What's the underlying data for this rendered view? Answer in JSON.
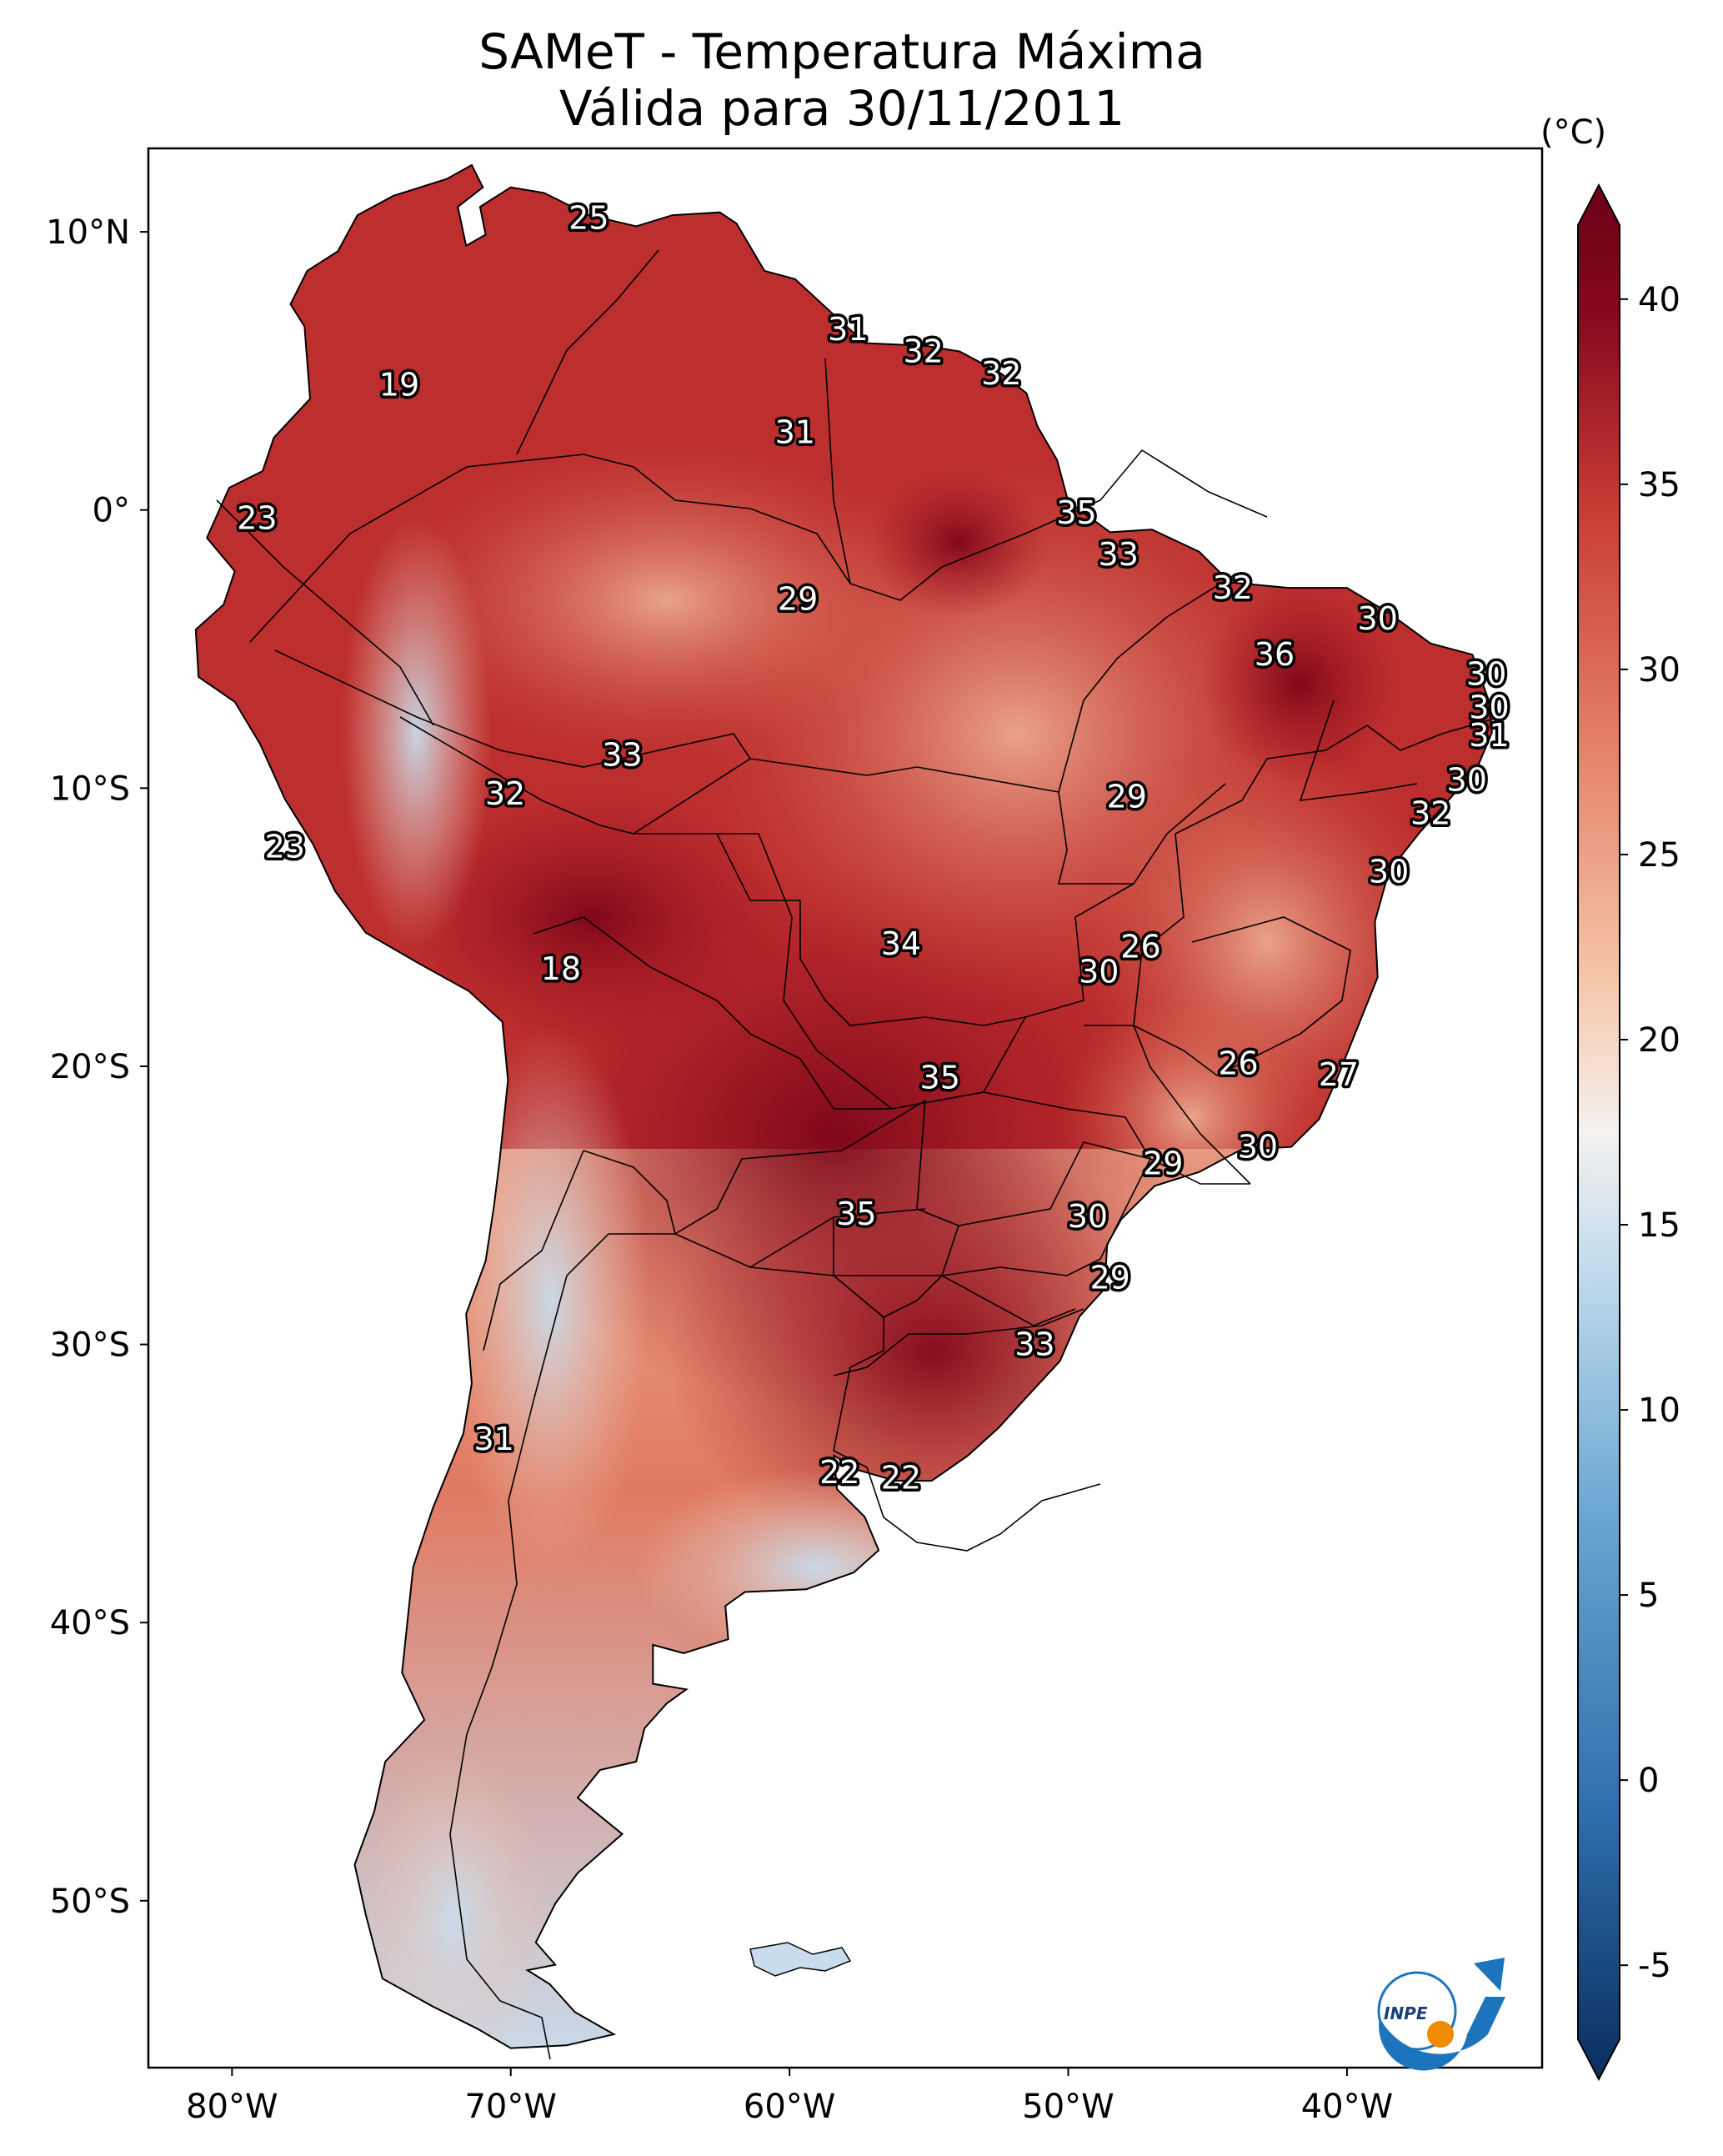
{
  "title": {
    "line1": "SAMeT - Temperatura Máxima",
    "line2": "Válida para 30/11/2011"
  },
  "map": {
    "region": "South America",
    "lon_range": [
      -83,
      -33
    ],
    "lat_range": [
      -56,
      13
    ],
    "lat_ticks": [
      {
        "value": 10,
        "label": "10°N"
      },
      {
        "value": 0,
        "label": "0°"
      },
      {
        "value": -10,
        "label": "10°S"
      },
      {
        "value": -20,
        "label": "20°S"
      },
      {
        "value": -30,
        "label": "30°S"
      },
      {
        "value": -40,
        "label": "40°S"
      },
      {
        "value": -50,
        "label": "50°S"
      }
    ],
    "lon_ticks": [
      {
        "value": -80,
        "label": "80°W"
      },
      {
        "value": -70,
        "label": "70°W"
      },
      {
        "value": -60,
        "label": "60°W"
      },
      {
        "value": -50,
        "label": "50°W"
      },
      {
        "value": -40,
        "label": "40°W"
      }
    ]
  },
  "temperature_labels": [
    {
      "lon": -67.2,
      "lat": 10.5,
      "value": "25"
    },
    {
      "lon": -57.9,
      "lat": 6.5,
      "value": "31"
    },
    {
      "lon": -55.2,
      "lat": 5.7,
      "value": "32"
    },
    {
      "lon": -52.4,
      "lat": 4.9,
      "value": "32"
    },
    {
      "lon": -74.0,
      "lat": 4.5,
      "value": "19"
    },
    {
      "lon": -59.8,
      "lat": 2.8,
      "value": "31"
    },
    {
      "lon": -79.1,
      "lat": -0.3,
      "value": "23"
    },
    {
      "lon": -49.7,
      "lat": -0.1,
      "value": "35"
    },
    {
      "lon": -48.2,
      "lat": -1.6,
      "value": "33"
    },
    {
      "lon": -59.7,
      "lat": -3.2,
      "value": "29"
    },
    {
      "lon": -44.1,
      "lat": -2.8,
      "value": "32"
    },
    {
      "lon": -38.9,
      "lat": -3.9,
      "value": "30"
    },
    {
      "lon": -42.6,
      "lat": -5.2,
      "value": "36"
    },
    {
      "lon": -35.0,
      "lat": -5.9,
      "value": "30"
    },
    {
      "lon": -34.9,
      "lat": -7.1,
      "value": "30"
    },
    {
      "lon": -34.9,
      "lat": -8.1,
      "value": "31"
    },
    {
      "lon": -66.0,
      "lat": -8.8,
      "value": "33"
    },
    {
      "lon": -35.7,
      "lat": -9.7,
      "value": "30"
    },
    {
      "lon": -70.2,
      "lat": -10.2,
      "value": "32"
    },
    {
      "lon": -47.9,
      "lat": -10.3,
      "value": "29"
    },
    {
      "lon": -37.0,
      "lat": -10.9,
      "value": "32"
    },
    {
      "lon": -78.1,
      "lat": -12.1,
      "value": "23"
    },
    {
      "lon": -38.5,
      "lat": -13.0,
      "value": "30"
    },
    {
      "lon": -56.0,
      "lat": -15.6,
      "value": "34"
    },
    {
      "lon": -47.4,
      "lat": -15.7,
      "value": "26"
    },
    {
      "lon": -68.2,
      "lat": -16.5,
      "value": "18"
    },
    {
      "lon": -48.9,
      "lat": -16.6,
      "value": "30"
    },
    {
      "lon": -43.9,
      "lat": -19.9,
      "value": "26"
    },
    {
      "lon": -40.3,
      "lat": -20.3,
      "value": "27"
    },
    {
      "lon": -54.6,
      "lat": -20.4,
      "value": "35"
    },
    {
      "lon": -43.2,
      "lat": -22.9,
      "value": "30"
    },
    {
      "lon": -46.6,
      "lat": -23.5,
      "value": "29"
    },
    {
      "lon": -57.6,
      "lat": -25.3,
      "value": "35"
    },
    {
      "lon": -49.3,
      "lat": -25.4,
      "value": "30"
    },
    {
      "lon": -48.5,
      "lat": -27.6,
      "value": "29"
    },
    {
      "lon": -51.2,
      "lat": -30.0,
      "value": "33"
    },
    {
      "lon": -70.6,
      "lat": -33.4,
      "value": "31"
    },
    {
      "lon": -58.2,
      "lat": -34.6,
      "value": "22"
    },
    {
      "lon": -56.0,
      "lat": -34.8,
      "value": "22"
    }
  ],
  "colorbar": {
    "unit": "(°C)",
    "min": -7,
    "max": 42,
    "ticks": [
      {
        "value": 40,
        "label": "40"
      },
      {
        "value": 35,
        "label": "35"
      },
      {
        "value": 30,
        "label": "30"
      },
      {
        "value": 25,
        "label": "25"
      },
      {
        "value": 20,
        "label": "20"
      },
      {
        "value": 15,
        "label": "15"
      },
      {
        "value": 10,
        "label": "10"
      },
      {
        "value": 5,
        "label": "5"
      },
      {
        "value": 0,
        "label": "0"
      },
      {
        "value": -5,
        "label": "-5"
      }
    ],
    "colors": [
      "#0b2d5e",
      "#2d6ead",
      "#6ba7d2",
      "#c3dcec",
      "#f4f1ee",
      "#f6c6ab",
      "#e5836b",
      "#c83b35",
      "#87091f",
      "#6a0015"
    ]
  },
  "logo": {
    "text": "INPE"
  }
}
